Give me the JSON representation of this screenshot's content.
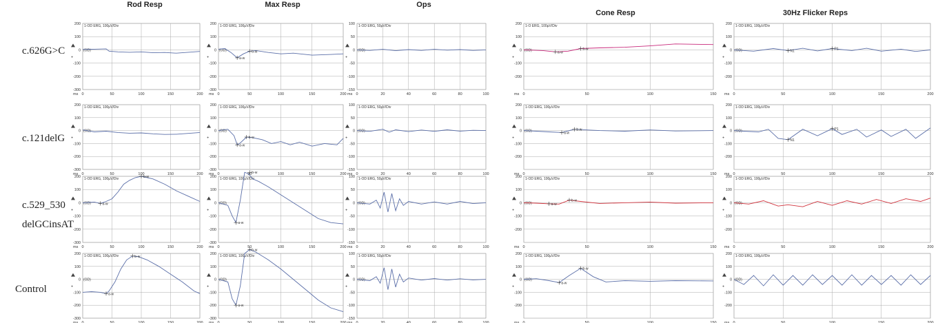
{
  "figure": {
    "column_titles": [
      "Rod Resp",
      "Max Resp",
      "Ops",
      "Cone Resp",
      "30Hz Flicker Reps"
    ],
    "row_labels": [
      [
        "c.626G>C"
      ],
      [
        "c.121delG"
      ],
      [
        "c.529_530",
        "delGCinsAT"
      ],
      [
        "Control"
      ]
    ],
    "x_unit_label": "ms",
    "baseline_label": "(OD)",
    "colors": {
      "blue_trace": "#5a6ea8",
      "red_trace": "#d0303a",
      "magenta_trace": "#c8287a",
      "grid": "#a8a8a8"
    }
  },
  "chart_data": [
    {
      "type": "line",
      "row": "c.626G>C",
      "column": "Rod Resp",
      "header": "1-OD ERG, 100µV/Div",
      "xlim": [
        0,
        200
      ],
      "xticks": [
        0,
        50,
        100,
        150,
        200
      ],
      "ylim": [
        -300,
        200
      ],
      "yticks": [
        200,
        100,
        0,
        -100,
        -200,
        -300
      ],
      "color": "#5a6ea8",
      "x": [
        0,
        20,
        40,
        45,
        60,
        80,
        100,
        120,
        140,
        160,
        180,
        200
      ],
      "y": [
        3,
        5,
        8,
        -10,
        -15,
        -18,
        -15,
        -22,
        -20,
        -25,
        -18,
        -12
      ],
      "markers": []
    },
    {
      "type": "line",
      "row": "c.626G>C",
      "column": "Max Resp",
      "header": "1-OD ERG, 100µV/Div",
      "xlim": [
        0,
        200
      ],
      "xticks": [
        0,
        50,
        100,
        150,
        200
      ],
      "ylim": [
        -300,
        200
      ],
      "yticks": [
        200,
        100,
        0,
        -100,
        -200,
        -300
      ],
      "color": "#5a6ea8",
      "x": [
        0,
        10,
        20,
        30,
        40,
        50,
        60,
        80,
        100,
        120,
        150,
        180,
        200
      ],
      "y": [
        5,
        10,
        -20,
        -60,
        -30,
        -10,
        -5,
        -20,
        -30,
        -25,
        -40,
        -35,
        -30
      ],
      "markers": [
        {
          "label": "a-w",
          "x": 30,
          "y": -60
        },
        {
          "label": "b-w",
          "x": 50,
          "y": -10
        }
      ]
    },
    {
      "type": "line",
      "row": "c.626G>C",
      "column": "Ops",
      "header": "1-OD ERG, 50µV/Div",
      "xlim": [
        0,
        100
      ],
      "xticks": [
        0,
        20,
        40,
        60,
        80,
        100
      ],
      "ylim": [
        -150,
        100
      ],
      "yticks": [
        100,
        50,
        0,
        -50,
        -100,
        -150
      ],
      "color": "#5a6ea8",
      "x": [
        0,
        10,
        20,
        30,
        40,
        50,
        60,
        70,
        80,
        90,
        100
      ],
      "y": [
        0,
        -2,
        2,
        -3,
        1,
        -2,
        2,
        -1,
        1,
        -2,
        0
      ],
      "markers": []
    },
    {
      "type": "line",
      "row": "c.626G>C",
      "column": "Cone Resp",
      "header": "1-O ERG, 100µV/Div",
      "xlim": [
        0,
        150
      ],
      "xticks": [
        0,
        50,
        100,
        150
      ],
      "ylim": [
        -300,
        200
      ],
      "yticks": [
        200,
        100,
        0,
        -100,
        -200
      ],
      "color": "#c8287a",
      "x": [
        0,
        15,
        25,
        35,
        45,
        60,
        80,
        100,
        120,
        150
      ],
      "y": [
        0,
        -5,
        -15,
        -10,
        10,
        15,
        20,
        30,
        45,
        40
      ],
      "markers": [
        {
          "label": "a-w",
          "x": 25,
          "y": -15
        },
        {
          "label": "b-w",
          "x": 45,
          "y": 10
        }
      ]
    },
    {
      "type": "line",
      "row": "c.626G>C",
      "column": "30Hz Flicker Reps",
      "header": "1-OD ERG, 100µV/Div",
      "xlim": [
        0,
        200
      ],
      "xticks": [
        0,
        50,
        100,
        150,
        200
      ],
      "ylim": [
        -300,
        200
      ],
      "yticks": [
        200,
        100,
        0,
        -100,
        -200
      ],
      "color": "#5a6ea8",
      "x": [
        0,
        20,
        40,
        55,
        70,
        85,
        100,
        120,
        135,
        150,
        170,
        185,
        200
      ],
      "y": [
        0,
        -10,
        10,
        -5,
        12,
        -8,
        10,
        -5,
        12,
        -10,
        5,
        -12,
        0
      ],
      "markers": [
        {
          "label": "N1",
          "x": 55,
          "y": -5
        },
        {
          "label": "P1",
          "x": 100,
          "y": 10
        }
      ]
    },
    {
      "type": "line",
      "row": "c.121delG",
      "column": "Rod Resp",
      "header": "1-OD ERG, 100µV/Div",
      "xlim": [
        0,
        200
      ],
      "xticks": [
        0,
        50,
        100,
        150,
        200
      ],
      "ylim": [
        -300,
        200
      ],
      "yticks": [
        200,
        100,
        0,
        -100,
        -200,
        -300
      ],
      "color": "#5a6ea8",
      "x": [
        0,
        20,
        40,
        60,
        80,
        100,
        120,
        140,
        160,
        180,
        200
      ],
      "y": [
        5,
        -10,
        -5,
        -15,
        -20,
        -18,
        -25,
        -30,
        -28,
        -22,
        -15
      ],
      "markers": []
    },
    {
      "type": "line",
      "row": "c.121delG",
      "column": "Max Resp",
      "header": "1-OD ERG, 100µV/Div",
      "xlim": [
        0,
        200
      ],
      "xticks": [
        0,
        50,
        100,
        150,
        200
      ],
      "ylim": [
        -300,
        200
      ],
      "yticks": [
        200,
        100,
        0,
        -100,
        -200,
        -300
      ],
      "color": "#5a6ea8",
      "x": [
        0,
        15,
        25,
        30,
        35,
        45,
        55,
        70,
        85,
        100,
        115,
        130,
        150,
        170,
        190,
        200
      ],
      "y": [
        0,
        10,
        -40,
        -110,
        -95,
        -50,
        -55,
        -70,
        -100,
        -85,
        -110,
        -90,
        -120,
        -100,
        -110,
        -60
      ],
      "markers": [
        {
          "label": "a-w",
          "x": 30,
          "y": -110
        },
        {
          "label": "b-w",
          "x": 45,
          "y": -50
        }
      ]
    },
    {
      "type": "line",
      "row": "c.121delG",
      "column": "Ops",
      "header": "1-OD ERG, 50µV/Div",
      "xlim": [
        0,
        100
      ],
      "xticks": [
        0,
        20,
        40,
        60,
        80,
        100
      ],
      "ylim": [
        -150,
        100
      ],
      "yticks": [
        100,
        50,
        0,
        -50,
        -100,
        -150
      ],
      "color": "#5a6ea8",
      "x": [
        0,
        10,
        20,
        25,
        30,
        40,
        50,
        60,
        70,
        80,
        90,
        100
      ],
      "y": [
        0,
        -3,
        5,
        -6,
        3,
        -4,
        2,
        -3,
        3,
        -2,
        1,
        0
      ],
      "markers": []
    },
    {
      "type": "line",
      "row": "c.121delG",
      "column": "Cone Resp",
      "header": "1-OD ERG, 100µV/Div",
      "xlim": [
        0,
        150
      ],
      "xticks": [
        0,
        50,
        100,
        150
      ],
      "ylim": [
        -300,
        200
      ],
      "yticks": [
        200,
        100,
        0,
        -100,
        -200
      ],
      "color": "#5a6ea8",
      "x": [
        0,
        10,
        20,
        30,
        40,
        50,
        60,
        80,
        100,
        120,
        150
      ],
      "y": [
        0,
        -5,
        -10,
        -15,
        10,
        5,
        0,
        -5,
        5,
        -3,
        0
      ],
      "markers": [
        {
          "label": "a-w",
          "x": 30,
          "y": -15
        },
        {
          "label": "b-w",
          "x": 40,
          "y": 10
        }
      ]
    },
    {
      "type": "line",
      "row": "c.121delG",
      "column": "30Hz Flicker Reps",
      "header": "1-OD ERG, 100µV/Div",
      "xlim": [
        0,
        200
      ],
      "xticks": [
        0,
        50,
        100,
        150,
        200
      ],
      "ylim": [
        -300,
        200
      ],
      "yticks": [
        200,
        100,
        0,
        -100,
        -200
      ],
      "color": "#5a6ea8",
      "x": [
        0,
        10,
        25,
        35,
        45,
        55,
        70,
        85,
        100,
        110,
        125,
        135,
        150,
        160,
        175,
        185,
        200
      ],
      "y": [
        0,
        -5,
        -10,
        10,
        -60,
        -70,
        10,
        -40,
        15,
        -30,
        10,
        -50,
        5,
        -45,
        10,
        -60,
        20
      ],
      "markers": [
        {
          "label": "N1",
          "x": 55,
          "y": -70
        },
        {
          "label": "P1",
          "x": 100,
          "y": 15
        }
      ]
    },
    {
      "type": "line",
      "row": "c.529_530 delGCinsAT",
      "column": "Rod Resp",
      "header": "1-OD ERG, 100µV/Div",
      "xlim": [
        0,
        200
      ],
      "xticks": [
        0,
        50,
        100,
        150,
        200
      ],
      "ylim": [
        -300,
        200
      ],
      "yticks": [
        200,
        100,
        0,
        -100,
        -200,
        -300
      ],
      "color": "#5a6ea8",
      "x": [
        0,
        20,
        30,
        40,
        50,
        60,
        70,
        80,
        90,
        100,
        120,
        140,
        160,
        180,
        200
      ],
      "y": [
        0,
        5,
        -5,
        10,
        30,
        80,
        140,
        170,
        190,
        200,
        180,
        140,
        90,
        50,
        10
      ],
      "markers": [
        {
          "label": "a-w",
          "x": 30,
          "y": -5
        },
        {
          "label": "b-w",
          "x": 100,
          "y": 200
        }
      ]
    },
    {
      "type": "line",
      "row": "c.529_530 delGCinsAT",
      "column": "Max Resp",
      "header": "1-OD ERG, 100µV/Div",
      "xlim": [
        0,
        200
      ],
      "xticks": [
        0,
        50,
        100,
        150,
        200
      ],
      "ylim": [
        -300,
        200
      ],
      "yticks": [
        200,
        100,
        0,
        -100,
        -200,
        -300
      ],
      "color": "#5a6ea8",
      "x": [
        0,
        15,
        22,
        28,
        35,
        42,
        48,
        55,
        65,
        80,
        100,
        120,
        140,
        160,
        180,
        200
      ],
      "y": [
        0,
        -20,
        -100,
        -150,
        20,
        230,
        220,
        180,
        160,
        120,
        60,
        0,
        -60,
        -120,
        -150,
        -160
      ],
      "markers": [
        {
          "label": "a-w",
          "x": 28,
          "y": -150
        },
        {
          "label": "b-w",
          "x": 50,
          "y": 230
        }
      ]
    },
    {
      "type": "line",
      "row": "c.529_530 delGCinsAT",
      "column": "Ops",
      "header": "1-OD ERG, 50µV/Div",
      "xlim": [
        0,
        100
      ],
      "xticks": [
        0,
        20,
        40,
        60,
        80,
        100
      ],
      "ylim": [
        -150,
        100
      ],
      "yticks": [
        100,
        50,
        0,
        -50,
        -100,
        -150
      ],
      "color": "#5a6ea8",
      "x": [
        0,
        10,
        15,
        18,
        21,
        24,
        27,
        30,
        33,
        36,
        40,
        50,
        60,
        70,
        80,
        90,
        100
      ],
      "y": [
        0,
        -5,
        10,
        -20,
        40,
        -35,
        35,
        -30,
        15,
        -10,
        5,
        -5,
        3,
        -5,
        5,
        -3,
        0
      ],
      "markers": []
    },
    {
      "type": "line",
      "row": "c.529_530 delGCinsAT",
      "column": "Cone Resp",
      "header": "1-OD ERG, 100µV/Div",
      "xlim": [
        0,
        150
      ],
      "xticks": [
        0,
        50,
        100,
        150
      ],
      "ylim": [
        -300,
        200
      ],
      "yticks": [
        200,
        100,
        0,
        -100,
        -200
      ],
      "color": "#d0303a",
      "x": [
        0,
        10,
        20,
        28,
        36,
        45,
        60,
        80,
        100,
        120,
        150
      ],
      "y": [
        0,
        -3,
        -8,
        -10,
        20,
        10,
        -5,
        0,
        5,
        -3,
        0
      ],
      "markers": [
        {
          "label": "a-w",
          "x": 20,
          "y": -8
        },
        {
          "label": "b-w",
          "x": 36,
          "y": 20
        }
      ]
    },
    {
      "type": "line",
      "row": "c.529_530 delGCinsAT",
      "column": "30Hz Flicker Reps",
      "header": "1-OD ERG, 100µV/Div",
      "xlim": [
        0,
        200
      ],
      "xticks": [
        0,
        50,
        100,
        150,
        200
      ],
      "ylim": [
        -300,
        200
      ],
      "yticks": [
        200,
        100,
        0,
        -100,
        -200
      ],
      "color": "#d0303a",
      "x": [
        0,
        15,
        30,
        45,
        55,
        70,
        85,
        100,
        115,
        130,
        145,
        160,
        175,
        190,
        200
      ],
      "y": [
        0,
        -10,
        15,
        -25,
        -15,
        -30,
        10,
        -20,
        15,
        -10,
        25,
        -5,
        30,
        10,
        35
      ],
      "markers": []
    },
    {
      "type": "line",
      "row": "Control",
      "column": "Rod Resp",
      "header": "1-OD ERG, 100µV/Div",
      "xlim": [
        0,
        200
      ],
      "xticks": [
        0,
        50,
        100,
        150,
        200
      ],
      "ylim": [
        -300,
        200
      ],
      "yticks": [
        200,
        100,
        0,
        -100,
        -200,
        -300
      ],
      "color": "#5a6ea8",
      "x": [
        0,
        15,
        30,
        40,
        45,
        55,
        65,
        75,
        85,
        95,
        110,
        130,
        150,
        170,
        190,
        200
      ],
      "y": [
        -100,
        -95,
        -100,
        -110,
        -90,
        -20,
        80,
        150,
        180,
        175,
        150,
        100,
        40,
        -20,
        -90,
        -110
      ],
      "markers": [
        {
          "label": "a-w",
          "x": 40,
          "y": -110
        },
        {
          "label": "b-w",
          "x": 85,
          "y": 180
        }
      ]
    },
    {
      "type": "line",
      "row": "Control",
      "column": "Max Resp",
      "header": "1-OD ERG, 100µV/Div",
      "xlim": [
        0,
        200
      ],
      "xticks": [
        0,
        50,
        100,
        150,
        200
      ],
      "ylim": [
        -300,
        200
      ],
      "yticks": [
        200,
        100,
        0,
        -100,
        -200,
        -300
      ],
      "color": "#5a6ea8",
      "x": [
        0,
        15,
        22,
        28,
        35,
        42,
        50,
        60,
        80,
        100,
        120,
        140,
        160,
        180,
        200
      ],
      "y": [
        0,
        -20,
        -150,
        -200,
        -50,
        200,
        230,
        210,
        150,
        80,
        0,
        -80,
        -160,
        -220,
        -250
      ],
      "markers": [
        {
          "label": "a-w",
          "x": 28,
          "y": -200
        },
        {
          "label": "b-w",
          "x": 50,
          "y": 230
        }
      ]
    },
    {
      "type": "line",
      "row": "Control",
      "column": "Ops",
      "header": "1-OD ERG, 50µV/Div",
      "xlim": [
        0,
        100
      ],
      "xticks": [
        0,
        20,
        40,
        60,
        80,
        100
      ],
      "ylim": [
        -150,
        100
      ],
      "yticks": [
        100,
        50,
        0,
        -50,
        -100,
        -150
      ],
      "color": "#5a6ea8",
      "x": [
        0,
        10,
        15,
        18,
        21,
        24,
        27,
        30,
        33,
        36,
        40,
        50,
        60,
        70,
        80,
        90,
        100
      ],
      "y": [
        0,
        -5,
        10,
        -15,
        45,
        -40,
        40,
        -30,
        20,
        -10,
        5,
        -3,
        3,
        -3,
        2,
        -2,
        0
      ],
      "markers": []
    },
    {
      "type": "line",
      "row": "Control",
      "column": "Cone Resp",
      "header": "1-OD ERG, 100µV/Div",
      "xlim": [
        0,
        150
      ],
      "xticks": [
        0,
        50,
        100,
        150
      ],
      "ylim": [
        -300,
        200
      ],
      "yticks": [
        200,
        100,
        0,
        -100,
        -200
      ],
      "color": "#5a6ea8",
      "x": [
        0,
        10,
        20,
        28,
        36,
        45,
        55,
        65,
        80,
        100,
        120,
        150
      ],
      "y": [
        0,
        5,
        -10,
        -25,
        30,
        85,
        20,
        -20,
        -10,
        -15,
        -10,
        -12
      ],
      "markers": [
        {
          "label": "a-w",
          "x": 28,
          "y": -25
        },
        {
          "label": "b-w",
          "x": 45,
          "y": 85
        }
      ]
    },
    {
      "type": "line",
      "row": "Control",
      "column": "30Hz Flicker Reps",
      "header": "1-OD ERG, 100µV/Div",
      "xlim": [
        0,
        200
      ],
      "xticks": [
        0,
        50,
        100,
        150,
        200
      ],
      "ylim": [
        -300,
        200
      ],
      "yticks": [
        200,
        100,
        0,
        -100,
        -200
      ],
      "color": "#5a6ea8",
      "x": [
        0,
        10,
        20,
        30,
        40,
        50,
        60,
        70,
        80,
        90,
        100,
        110,
        120,
        130,
        140,
        150,
        160,
        170,
        180,
        190,
        200
      ],
      "y": [
        0,
        -40,
        30,
        -50,
        35,
        -45,
        30,
        -45,
        35,
        -40,
        30,
        -45,
        35,
        -45,
        30,
        -40,
        30,
        -45,
        35,
        -40,
        30
      ],
      "markers": []
    }
  ]
}
